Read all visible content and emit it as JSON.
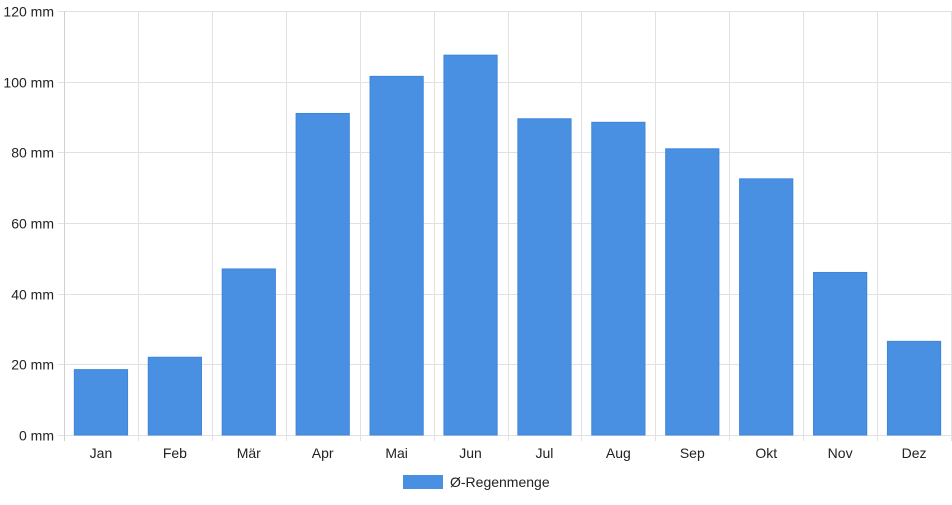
{
  "chart_data": {
    "type": "bar",
    "categories": [
      "Jan",
      "Feb",
      "Mär",
      "Apr",
      "Mai",
      "Jun",
      "Jul",
      "Aug",
      "Sep",
      "Okt",
      "Nov",
      "Dez"
    ],
    "series": [
      {
        "name": "Ø-Regenmenge",
        "values": [
          18.5,
          22,
          47,
          91,
          101.5,
          107.5,
          89.5,
          88.5,
          81,
          72.5,
          46,
          26.5
        ],
        "color": "#4a90e2"
      }
    ],
    "ylim": [
      0,
      120
    ],
    "y_ticks": [
      0,
      20,
      40,
      60,
      80,
      100,
      120
    ],
    "y_tick_unit": " mm",
    "grid": true,
    "legend_position": "bottom-center"
  }
}
